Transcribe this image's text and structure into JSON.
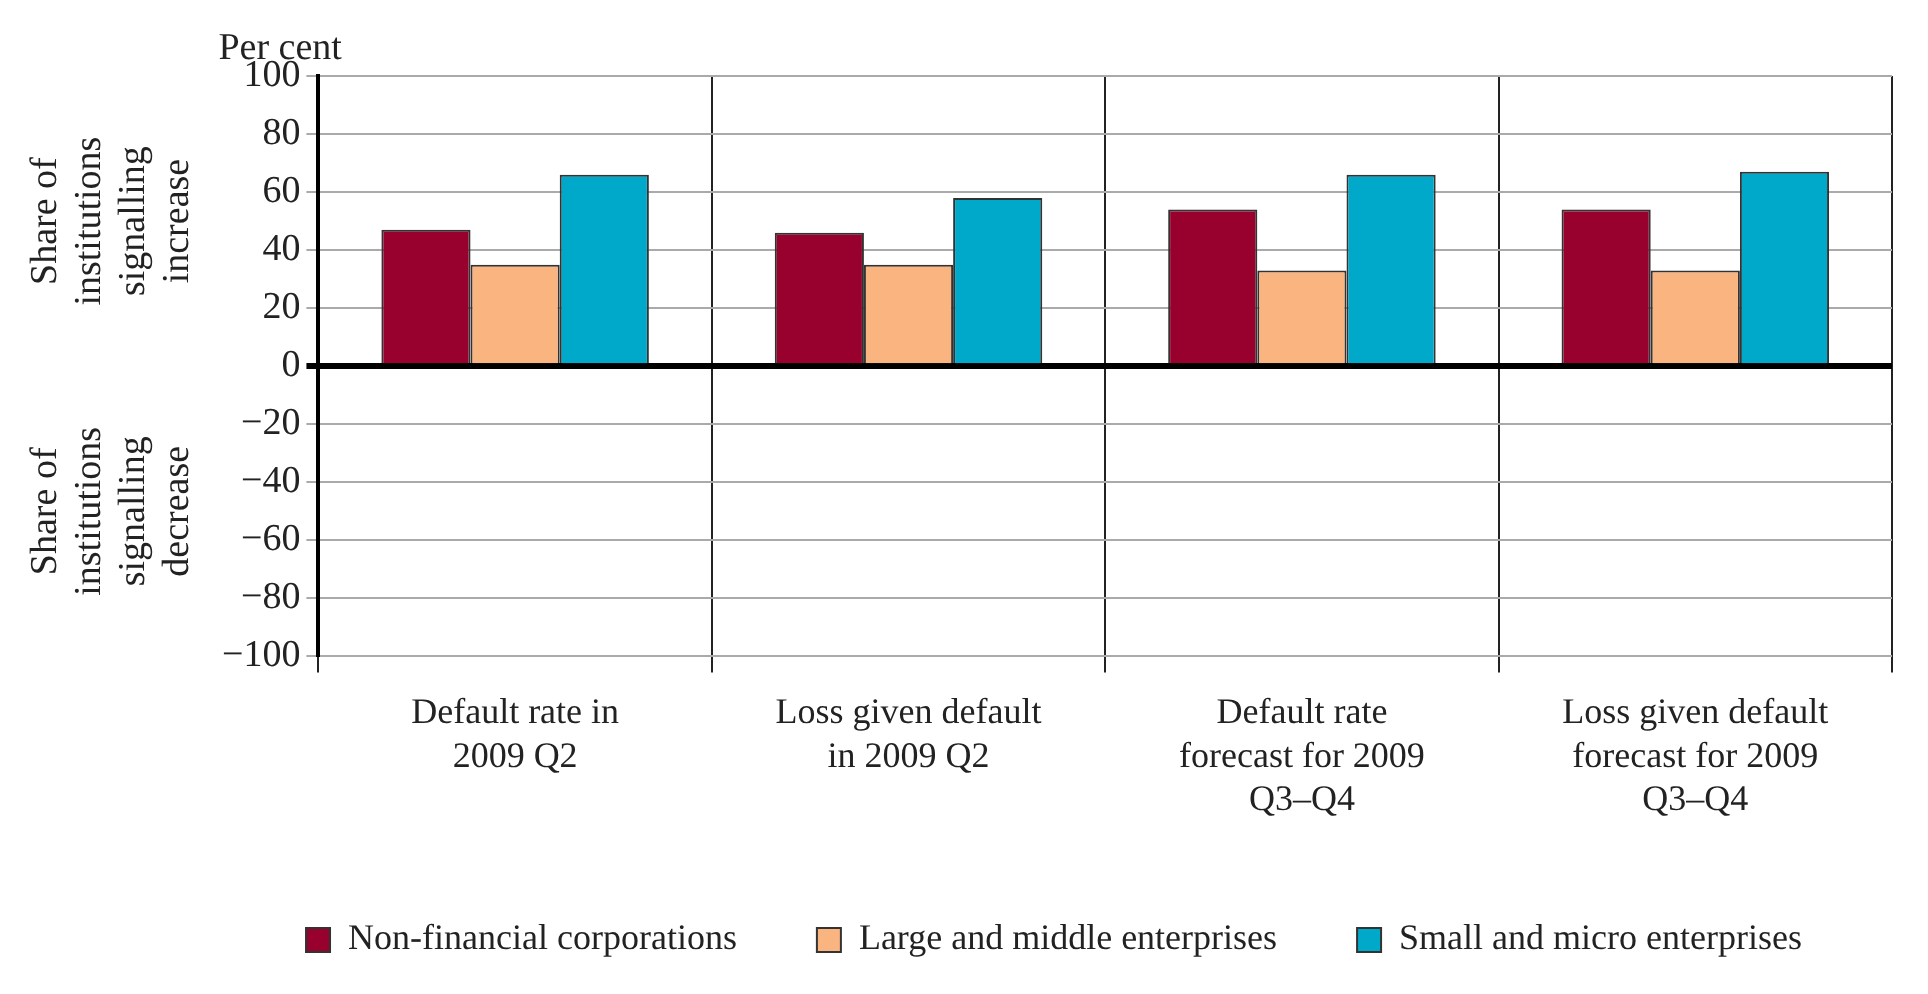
{
  "chart_data": {
    "type": "bar",
    "ylabel": "Per cent",
    "annotations": [
      "Share of institutions signalling increase",
      "Share of institutions signalling decrease"
    ],
    "categories": [
      "Default rate in 2009 Q2",
      "Loss given default in 2009 Q2",
      "Default rate forecast for 2009 Q3–Q4",
      "Loss given default forecast for 2009 Q3–Q4"
    ],
    "series": [
      {
        "name": "Non-financial corporations",
        "color": "#98002e",
        "values": [
          47,
          46,
          54,
          54
        ]
      },
      {
        "name": "Large and middle enterprises",
        "color": "#fab480",
        "values": [
          35,
          35,
          33,
          33
        ]
      },
      {
        "name": "Small and micro enterprises",
        "color": "#00a9c9",
        "values": [
          66,
          58,
          66,
          67
        ]
      }
    ],
    "ylim": [
      -100,
      100
    ],
    "yticks": [
      {
        "value": -100,
        "label": "−100"
      },
      {
        "value": -80,
        "label": "−80"
      },
      {
        "value": -60,
        "label": "−60"
      },
      {
        "value": -40,
        "label": "−40"
      },
      {
        "value": -20,
        "label": "−20"
      },
      0,
      20,
      40,
      60,
      80,
      100
    ],
    "grid": true,
    "legend": "bottom"
  }
}
